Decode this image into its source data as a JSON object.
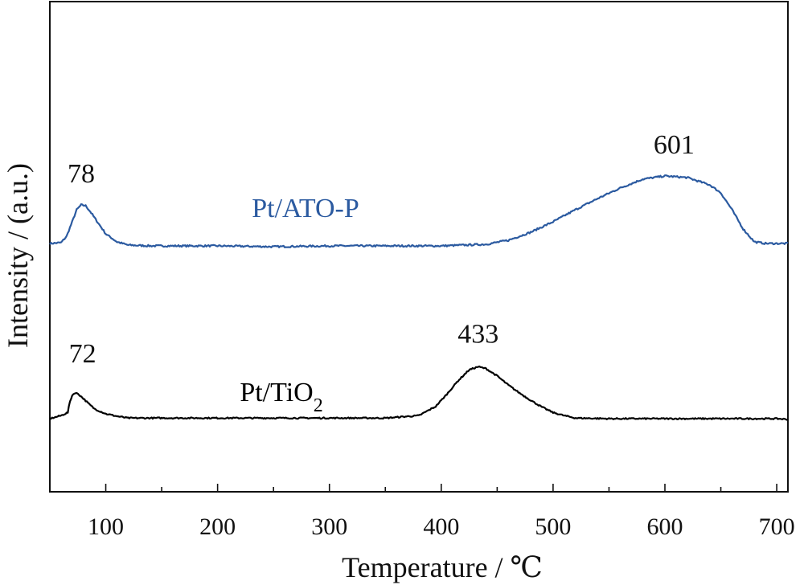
{
  "chart_data": {
    "type": "line",
    "title": "",
    "xlabel": "Temperature / ℃",
    "ylabel": "Intensity / (a.u.)",
    "xlim": [
      50,
      710
    ],
    "x_ticks": [
      100,
      200,
      300,
      400,
      500,
      600,
      700
    ],
    "x_tick_labels": [
      "100",
      "200",
      "300",
      "400",
      "500",
      "600",
      "700"
    ],
    "y_ticks_shown": false,
    "grid": false,
    "legend": "none (series labelled directly on the plot)",
    "series": [
      {
        "name": "Pt/ATO-P",
        "label_text": "Pt/ATO-P",
        "color": "#2b5aa0",
        "x": [
          50,
          60,
          65,
          70,
          74,
          78,
          82,
          86,
          90,
          96,
          100,
          110,
          120,
          140,
          160,
          200,
          250,
          300,
          350,
          400,
          440,
          460,
          480,
          500,
          520,
          540,
          560,
          580,
          600,
          620,
          640,
          650,
          660,
          670,
          680,
          690,
          700,
          710
        ],
        "y": [
          0.1,
          0.11,
          0.19,
          0.37,
          0.52,
          0.58,
          0.57,
          0.5,
          0.42,
          0.3,
          0.22,
          0.12,
          0.08,
          0.07,
          0.07,
          0.07,
          0.06,
          0.07,
          0.07,
          0.07,
          0.09,
          0.14,
          0.24,
          0.37,
          0.52,
          0.66,
          0.79,
          0.9,
          0.94,
          0.92,
          0.83,
          0.73,
          0.52,
          0.28,
          0.12,
          0.1,
          0.1,
          0.1
        ],
        "peaks": [
          {
            "x": 78,
            "label": "78"
          },
          {
            "x": 601,
            "label": "601"
          }
        ]
      },
      {
        "name": "Pt/TiO2",
        "label_text": "Pt/TiO",
        "label_subscript": "2",
        "color": "#000000",
        "x": [
          50,
          60,
          66,
          68,
          70,
          72,
          75,
          80,
          85,
          90,
          100,
          110,
          120,
          150,
          200,
          250,
          300,
          350,
          380,
          395,
          405,
          415,
          425,
          433,
          440,
          450,
          460,
          470,
          480,
          490,
          500,
          510,
          520,
          550,
          600,
          650,
          700,
          710
        ],
        "y": [
          0.0,
          0.05,
          0.1,
          0.28,
          0.38,
          0.42,
          0.41,
          0.33,
          0.24,
          0.16,
          0.08,
          0.04,
          0.01,
          0.01,
          0.01,
          0.01,
          0.01,
          0.01,
          0.05,
          0.2,
          0.4,
          0.62,
          0.8,
          0.85,
          0.82,
          0.7,
          0.55,
          0.42,
          0.3,
          0.19,
          0.1,
          0.05,
          0.01,
          0.0,
          0.0,
          0.0,
          0.0,
          -0.01
        ],
        "peaks": [
          {
            "x": 72,
            "label": "72"
          },
          {
            "x": 433,
            "label": "433"
          }
        ]
      }
    ]
  }
}
